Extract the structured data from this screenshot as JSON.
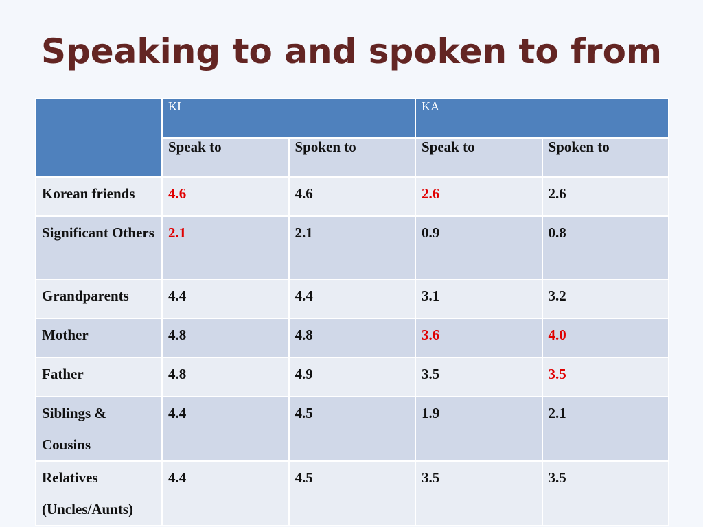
{
  "title": "Speaking to and spoken to from",
  "table": {
    "groups": [
      "KI",
      "KA"
    ],
    "subheaders": [
      "Speak to",
      "Spoken to",
      "Speak to",
      "Spoken to"
    ],
    "highlight_color": "#e00000",
    "rows": [
      {
        "label": "Korean friends",
        "values": [
          "4.6",
          "4.6",
          "2.6",
          "2.6"
        ],
        "highlighted": [
          true,
          false,
          true,
          false
        ]
      },
      {
        "label": "Significant Others",
        "values": [
          "2.1",
          "2.1",
          "0.9",
          "0.8"
        ],
        "highlighted": [
          true,
          false,
          false,
          false
        ]
      },
      {
        "label": "Grandparents",
        "values": [
          "4.4",
          "4.4",
          "3.1",
          "3.2"
        ],
        "highlighted": [
          false,
          false,
          false,
          false
        ]
      },
      {
        "label": "Mother",
        "values": [
          "4.8",
          "4.8",
          "3.6",
          "4.0"
        ],
        "highlighted": [
          false,
          false,
          true,
          true
        ]
      },
      {
        "label": "Father",
        "values": [
          "4.8",
          "4.9",
          "3.5",
          "3.5"
        ],
        "highlighted": [
          false,
          false,
          false,
          true
        ]
      },
      {
        "label": "Siblings & Cousins",
        "values": [
          "4.4",
          "4.5",
          "1.9",
          "2.1"
        ],
        "highlighted": [
          false,
          false,
          false,
          false
        ]
      },
      {
        "label": "Relatives (Uncles/Aunts)",
        "values": [
          "4.4",
          "4.5",
          "3.5",
          "3.5"
        ],
        "highlighted": [
          false,
          false,
          false,
          false
        ]
      }
    ]
  }
}
